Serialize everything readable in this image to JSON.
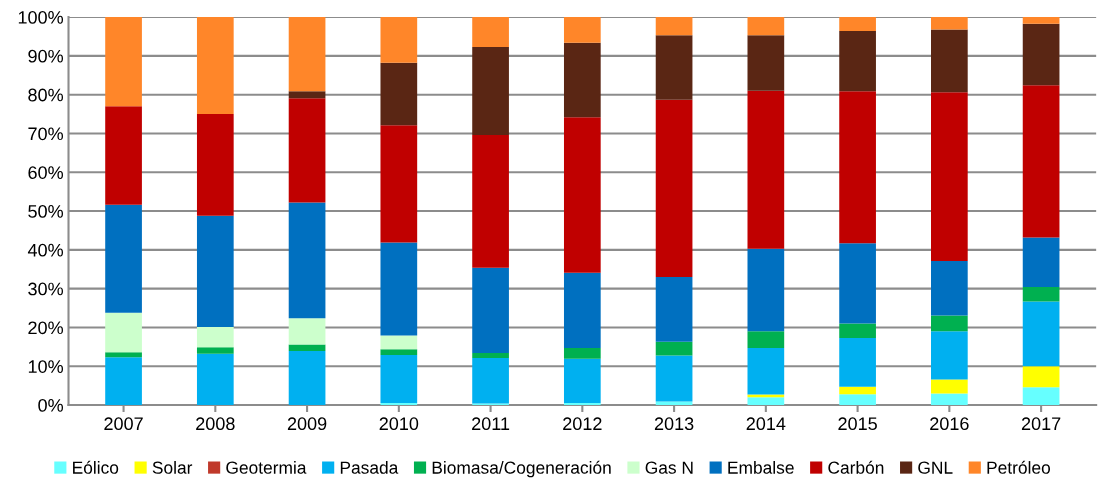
{
  "chart_data": {
    "type": "bar",
    "stacked": true,
    "categories": [
      "2007",
      "2008",
      "2009",
      "2010",
      "2011",
      "2012",
      "2013",
      "2014",
      "2015",
      "2016",
      "2017"
    ],
    "series": [
      {
        "name": "Eólico",
        "color": "#66ffff",
        "values": [
          0,
          0,
          0,
          0.5,
          0.4,
          0.5,
          0.9,
          2.0,
          2.8,
          3.0,
          4.6
        ]
      },
      {
        "name": "Solar",
        "color": "#ffff00",
        "values": [
          0,
          0,
          0,
          0,
          0,
          0,
          0,
          0.7,
          1.9,
          3.6,
          5.4
        ]
      },
      {
        "name": "Geotermia",
        "color": "#c0392b",
        "values": [
          0,
          0,
          0,
          0,
          0,
          0,
          0,
          0,
          0,
          0,
          0
        ]
      },
      {
        "name": "Pasada",
        "color": "#00b0f0",
        "values": [
          12.3,
          13.2,
          13.9,
          12.4,
          11.7,
          11.4,
          11.9,
          12.0,
          12.6,
          12.4,
          16.7
        ]
      },
      {
        "name": "Biomasa/Cogeneración",
        "color": "#00b050",
        "values": [
          1.3,
          1.7,
          1.7,
          1.5,
          1.3,
          2.8,
          3.5,
          4.3,
          3.7,
          4.1,
          3.7
        ]
      },
      {
        "name": "Gas N",
        "color": "#ccffcc",
        "values": [
          10.2,
          5.2,
          6.8,
          3.5,
          0,
          0,
          0,
          0,
          0,
          0,
          0
        ]
      },
      {
        "name": "Embalse",
        "color": "#0070c0",
        "values": [
          27.8,
          28.7,
          29.8,
          24.0,
          22.0,
          19.4,
          16.7,
          21.3,
          20.7,
          14.0,
          12.8
        ]
      },
      {
        "name": "Carbón",
        "color": "#c00000",
        "values": [
          25.4,
          26.2,
          26.9,
          30.2,
          34.2,
          40.1,
          45.7,
          40.7,
          39.2,
          43.5,
          39.2
        ]
      },
      {
        "name": "GNL",
        "color": "#5a2614",
        "values": [
          0,
          0,
          1.8,
          16.1,
          22.7,
          19.2,
          16.6,
          14.3,
          15.5,
          16.2,
          15.9
        ]
      },
      {
        "name": "Petróleo",
        "color": "#ff8629",
        "values": [
          23.0,
          25.0,
          19.1,
          11.8,
          7.7,
          6.6,
          4.7,
          4.7,
          3.6,
          3.2,
          1.7
        ]
      }
    ],
    "ylim": [
      0,
      100
    ],
    "yticks": [
      {
        "value": 0,
        "label": "0%"
      },
      {
        "value": 10,
        "label": "10%"
      },
      {
        "value": 20,
        "label": "20%"
      },
      {
        "value": 30,
        "label": "30%"
      },
      {
        "value": 40,
        "label": "40%"
      },
      {
        "value": 50,
        "label": "50%"
      },
      {
        "value": 60,
        "label": "60%"
      },
      {
        "value": 70,
        "label": "70%"
      },
      {
        "value": 80,
        "label": "80%"
      },
      {
        "value": 90,
        "label": "90%"
      },
      {
        "value": 100,
        "label": "100%"
      }
    ],
    "grid": "y",
    "legend": "bottom"
  }
}
